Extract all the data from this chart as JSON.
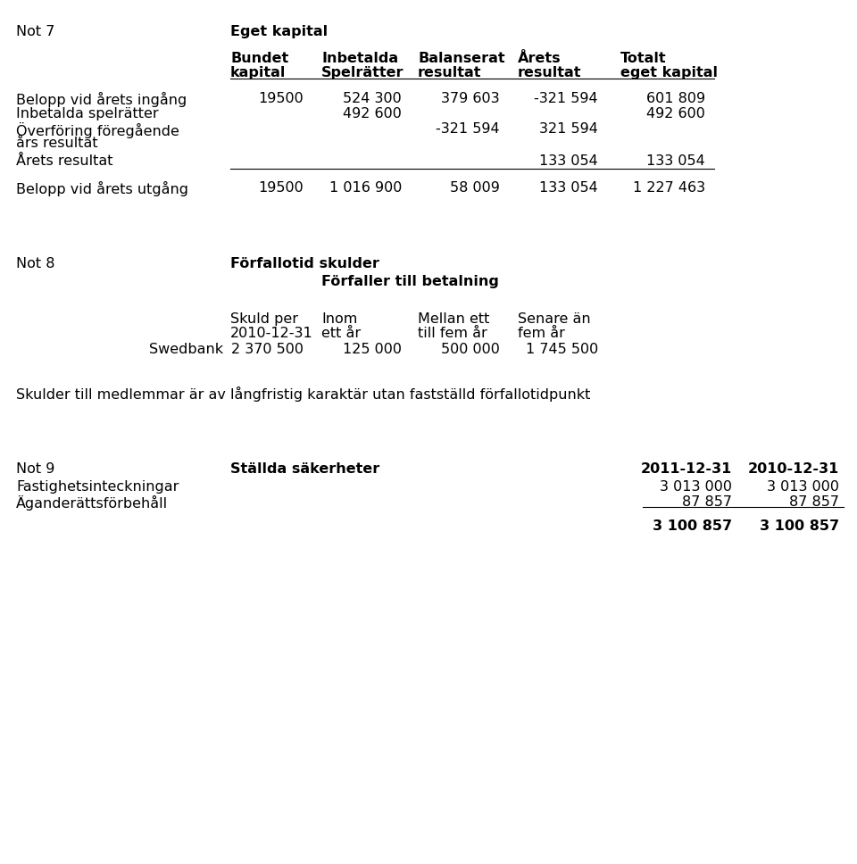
{
  "bg_color": "#ffffff",
  "font_size": 11.5,
  "not7_label": "Not 7",
  "eget_kapital_header": "Eget kapital",
  "col_headers": [
    [
      "Bundet",
      "kapital"
    ],
    [
      "Inbetalda",
      "Spelrätter"
    ],
    [
      "Balanserat",
      "resultat"
    ],
    [
      "Årets",
      "resultat"
    ],
    [
      "Totalt",
      "eget kapital"
    ]
  ],
  "rows": [
    {
      "label": "Belopp vid årets ingång",
      "label2": null,
      "cols": [
        "19500",
        "524 300",
        "379 603",
        "-321 594",
        "601 809"
      ]
    },
    {
      "label": "Inbetalda spelrätter",
      "label2": null,
      "cols": [
        "",
        "492 600",
        "",
        "",
        "492 600"
      ]
    },
    {
      "label": "Överföring föregående",
      "label2": "års resultat",
      "cols": [
        "",
        "",
        "-321 594",
        "321 594",
        ""
      ]
    },
    {
      "label": "Årets resultat",
      "label2": null,
      "cols": [
        "",
        "",
        "",
        "133 054",
        "133 054"
      ]
    },
    {
      "label": "Belopp vid årets utgång",
      "label2": null,
      "cols": [
        "19500",
        "1 016 900",
        "58 009",
        "133 054",
        "1 227 463"
      ]
    }
  ],
  "not8_label": "Not 8",
  "not8_header1": "Förfallotid skulder",
  "not8_header2": "Förfaller till betalning",
  "not8_col_headers_row1": [
    "Skuld per",
    "Inom",
    "Mellan ett",
    "Senare än"
  ],
  "not8_col_headers_row2": [
    "2010-12-31",
    "ett år",
    "till fem år",
    "fem år"
  ],
  "not8_row_label": "Swedbank",
  "not8_row_values": [
    "2 370 500",
    "125 000",
    "500 000",
    "1 745 500"
  ],
  "skulder_note": "Skulder till medlemmar är av långfristig karaktär utan fastställd förfallotidpunkt",
  "not9_label": "Not 9",
  "not9_header": "Ställda säkerheter",
  "not9_year1": "2011-12-31",
  "not9_year2": "2010-12-31",
  "not9_r1_label": "Fastighetsinteckningar",
  "not9_r1_v1": "3 013 000",
  "not9_r1_v2": "3 013 000",
  "not9_r2_label": "Äganderättsförbehåll",
  "not9_r2_v1": "87 857",
  "not9_r2_v2": "87 857",
  "not9_total_v1": "3 100 857",
  "not9_total_v2": "3 100 857"
}
